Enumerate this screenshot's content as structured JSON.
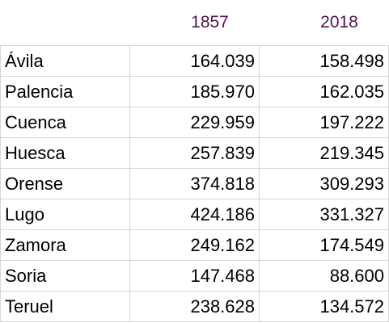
{
  "table": {
    "header": [
      "1857",
      "2018"
    ],
    "rows": [
      [
        "Ávila",
        "164.039",
        "158.498"
      ],
      [
        "Palencia",
        "185.970",
        "162.035"
      ],
      [
        "Cuenca",
        "229.959",
        "197.222"
      ],
      [
        "Huesca",
        "257.839",
        "219.345"
      ],
      [
        "Orense",
        "374.818",
        "309.293"
      ],
      [
        "Lugo",
        "424.186",
        "331.327"
      ],
      [
        "Zamora",
        "249.162",
        "174.549"
      ],
      [
        "Soria",
        "147.468",
        "88.600"
      ],
      [
        "Teruel",
        "238.628",
        "134.572"
      ]
    ]
  }
}
